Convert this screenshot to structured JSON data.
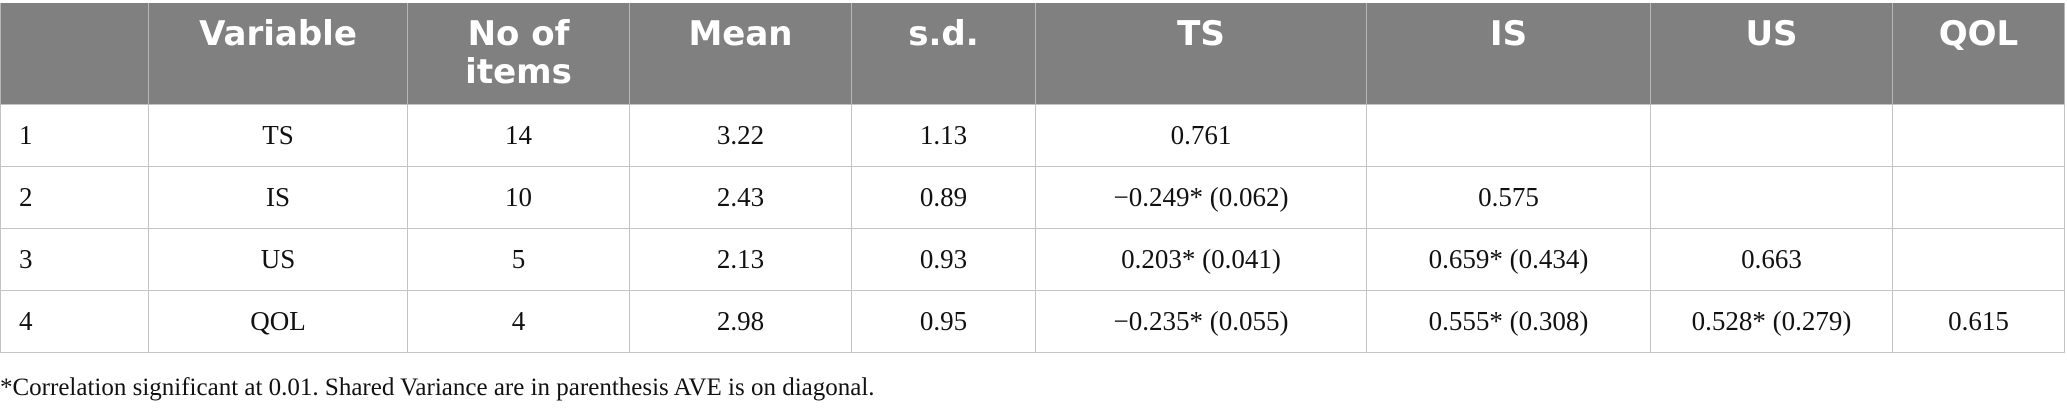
{
  "table": {
    "headers": [
      "",
      "Variable",
      "No of items",
      "Mean",
      "s.d.",
      "TS",
      "IS",
      "US",
      "QOL"
    ],
    "rows": [
      [
        "1",
        "TS",
        "14",
        "3.22",
        "1.13",
        "0.761",
        "",
        "",
        ""
      ],
      [
        "2",
        "IS",
        "10",
        "2.43",
        "0.89",
        "−0.249* (0.062)",
        "0.575",
        "",
        ""
      ],
      [
        "3",
        "US",
        "5",
        "2.13",
        "0.93",
        "0.203* (0.041)",
        "0.659* (0.434)",
        "0.663",
        ""
      ],
      [
        "4",
        "QOL",
        "4",
        "2.98",
        "0.95",
        "−0.235* (0.055)",
        "0.555* (0.308)",
        "0.528* (0.279)",
        "0.615"
      ]
    ]
  },
  "footnote": "*Correlation significant at 0.01. Shared Variance are in parenthesis AVE is on diagonal.",
  "colors": {
    "header_background": "#808080",
    "header_text": "#ffffff",
    "grid_line": "#c4c4c4",
    "body_text": "#111111"
  }
}
